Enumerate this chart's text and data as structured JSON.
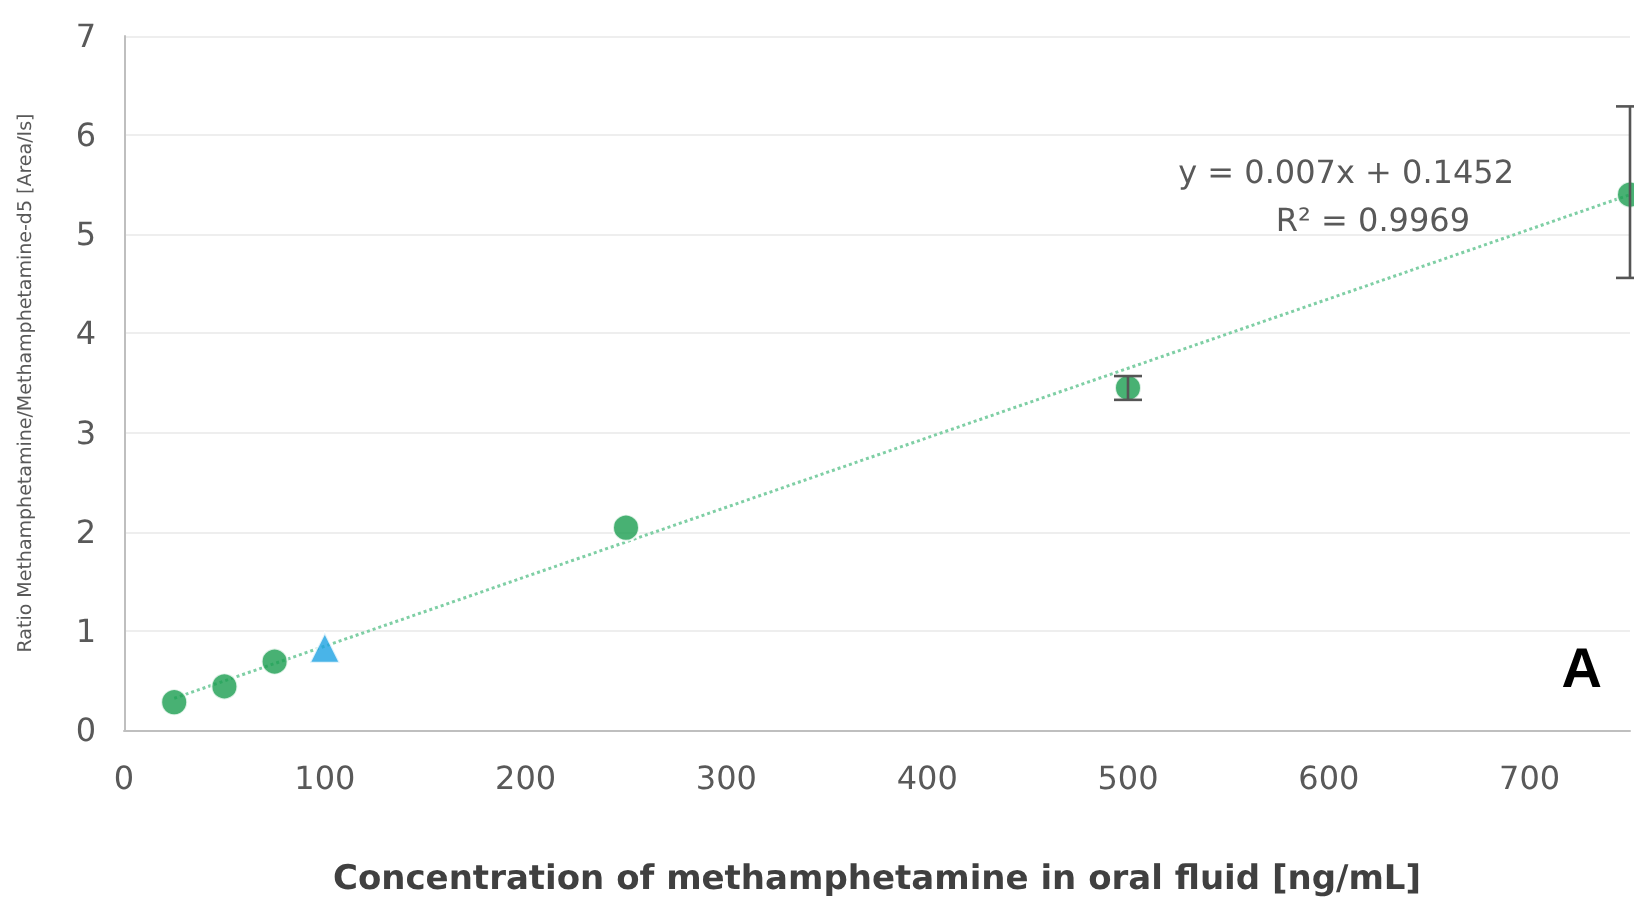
{
  "chart_data": {
    "type": "scatter",
    "xlabel": "Concentration of methamphetamine in oral fluid [ng/mL]",
    "ylabel": "Ratio Methamphetamine/Methamphetamine-d5 [Area/Is]",
    "xlim": [
      0,
      750
    ],
    "xticks": [
      0,
      100,
      200,
      300,
      400,
      500,
      600,
      700
    ],
    "ylim": [
      0,
      7
    ],
    "yticks": [
      0,
      1,
      2,
      3,
      4,
      5,
      6,
      7
    ],
    "grid": "y",
    "series": [
      {
        "type": "line",
        "color": "#7fcfa5",
        "x": [
          25,
          750
        ],
        "values": [
          0.32,
          5.4
        ],
        "marker": "none",
        "line_style": "dotted"
      },
      {
        "color": "#1a9e50",
        "x": [
          25,
          50,
          75,
          250,
          500,
          750
        ],
        "values": [
          0.28,
          0.44,
          0.69,
          2.04,
          3.45,
          5.4
        ],
        "marker": "circle",
        "errors": [
          null,
          null,
          null,
          null,
          0.12,
          [
            4.56,
            6.29
          ]
        ]
      },
      {
        "color": "#1ba1e2",
        "x": [
          100
        ],
        "values": [
          0.83
        ],
        "marker": "triangle"
      }
    ],
    "annotations": [
      "y = 0.007x + 0.1452",
      "R² = 0.9969",
      "A"
    ]
  }
}
